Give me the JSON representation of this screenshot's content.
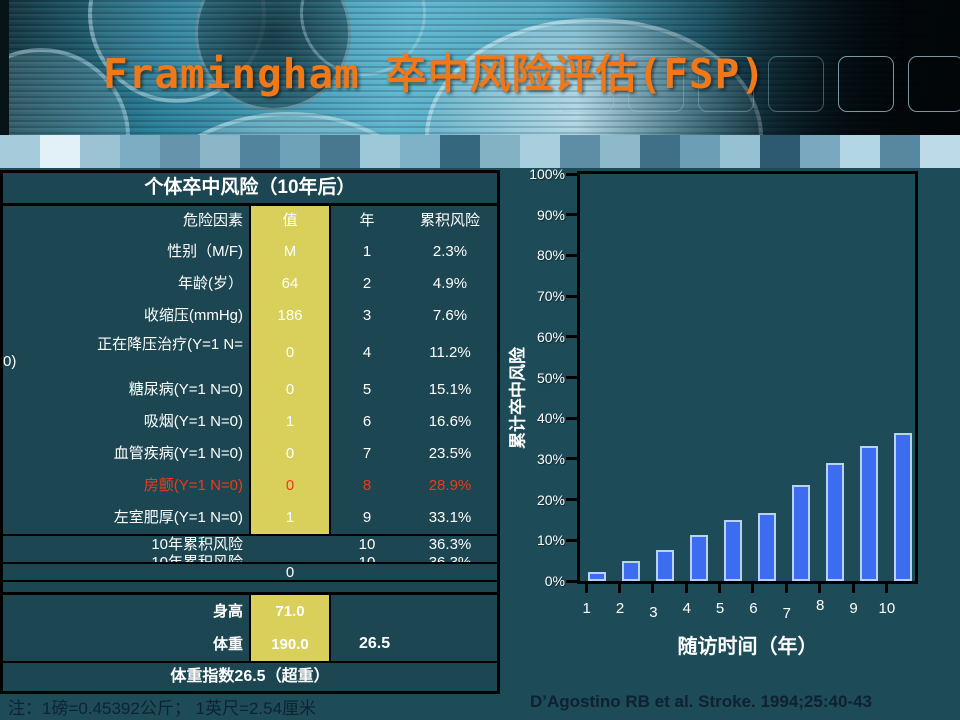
{
  "slide": {
    "title": "Framingham 卒中风险评估(FSP)",
    "footer_note": "注：1磅=0.45392公斤； 1英尺=2.54厘米",
    "citation": "D’Agostino RB et al. Stroke. 1994;25:40-43"
  },
  "header": {
    "squares": 6,
    "strip_colors": [
      "#a6ccdc",
      "#e2f1f7",
      "#9cc3d4",
      "#7dadc2",
      "#6694ac",
      "#8ab6c8",
      "#52849e",
      "#6ea2b8",
      "#47788f",
      "#9dc8d8",
      "#7fb2c6",
      "#35687e",
      "#83b2c4",
      "#a9cfdf",
      "#5d8ea6",
      "#8db9cb",
      "#3f7088",
      "#6c9fb5",
      "#96c1d2",
      "#2d5a70",
      "#7aa9bf",
      "#b3d6e4",
      "#5788a0",
      "#bcdae8"
    ]
  },
  "table": {
    "title": "个体卒中风险（10年后）",
    "columns": [
      "危险因素",
      "值",
      "年",
      "累积风险"
    ],
    "rows": [
      {
        "label": "性别（M/F)",
        "value": "M",
        "year": "1",
        "risk": "2.3%"
      },
      {
        "label": "年龄(岁）",
        "value": "64",
        "year": "2",
        "risk": "4.9%"
      },
      {
        "label": "收缩压(mmHg)",
        "value": "186",
        "year": "3",
        "risk": "7.6%"
      },
      {
        "label": "正在降压治疗(Y=1 N=",
        "label2": "0)",
        "value": "0",
        "year": "4",
        "risk": "11.2%"
      },
      {
        "label": "糖尿病(Y=1 N=0)",
        "value": "0",
        "year": "5",
        "risk": "15.1%"
      },
      {
        "label": "吸烟(Y=1 N=0)",
        "value": "1",
        "year": "6",
        "risk": "16.6%"
      },
      {
        "label": "血管疾病(Y=1 N=0)",
        "value": "0",
        "year": "7",
        "risk": "23.5%"
      },
      {
        "label": "房颤(Y=1 N=0)",
        "value": "0",
        "year": "8",
        "risk": "28.9%",
        "red": true
      },
      {
        "label": "左室肥厚(Y=1 N=0)",
        "value": "1",
        "year": "9",
        "risk": "33.1%"
      }
    ],
    "summary": {
      "label": "10年累积风险",
      "year": "10",
      "risk": "36.3%"
    },
    "zero_value": "0",
    "bmi": {
      "height_label": "身高",
      "height_value": "71.0",
      "weight_label": "体重",
      "weight_value": "190.0",
      "bmi_value": "26.5",
      "summary": "体重指数26.5（超重）"
    }
  },
  "chart_data": {
    "type": "bar",
    "categories": [
      "1",
      "2",
      "3",
      "4",
      "5",
      "6",
      "7",
      "8",
      "9",
      "10"
    ],
    "values": [
      2.3,
      4.9,
      7.6,
      11.2,
      15.1,
      16.6,
      23.5,
      28.9,
      33.1,
      36.3
    ],
    "title": "",
    "xlabel": "随访时间（年）",
    "ylabel": "累计卒中风险",
    "ylim": [
      0,
      100
    ],
    "ytick_step": 10,
    "ytick_suffix": "%",
    "grid": false,
    "legend": "none",
    "bar_color": "#3c6cf0",
    "bar_border": "#b9d2f2"
  },
  "colors": {
    "background": "#1d4b58",
    "title_orange": "#f07818",
    "value_column_yellow": "#d9cf5b",
    "highlight_red": "#ef3a1a",
    "bar_blue": "#3c6cf0",
    "text_white": "#ffffff",
    "footer_text_dark": "#0d2430"
  }
}
